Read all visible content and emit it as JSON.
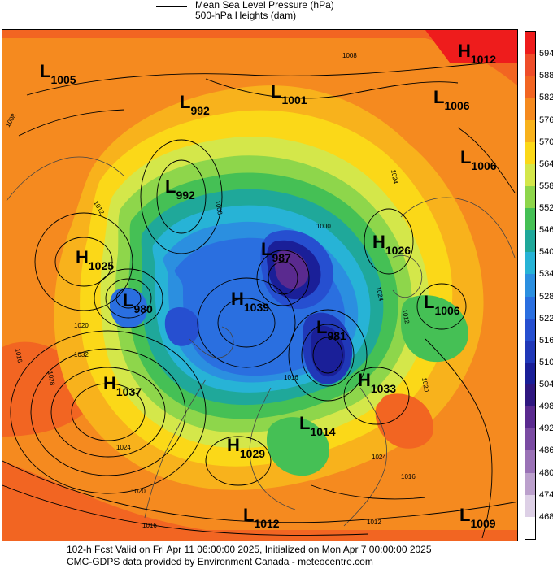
{
  "legend": {
    "line_label": "Mean Sea Level Pressure (hPa)",
    "fill_label": "500-hPa Heights (dam)"
  },
  "colorbar": {
    "ticks": [
      "594",
      "588",
      "582",
      "576",
      "570",
      "564",
      "558",
      "552",
      "546",
      "540",
      "534",
      "528",
      "522",
      "516",
      "510",
      "504",
      "498",
      "492",
      "486",
      "480",
      "474",
      "468"
    ],
    "colors": [
      "#ee1c1c",
      "#ef4d2a",
      "#f26522",
      "#f58a1f",
      "#f8b21c",
      "#fbd818",
      "#d4e74a",
      "#8ed64b",
      "#45c055",
      "#1fa89a",
      "#27b3d6",
      "#2b8fe0",
      "#2a6fe0",
      "#264fd0",
      "#2038b8",
      "#1a1f98",
      "#2f1780",
      "#5a2a8f",
      "#7a4ba2",
      "#9a72b6",
      "#bba0cc",
      "#ddd0e6",
      "#ffffff"
    ]
  },
  "pressure_systems": [
    {
      "type": "L",
      "value": "1005"
    },
    {
      "type": "L",
      "value": "992"
    },
    {
      "type": "L",
      "value": "1001"
    },
    {
      "type": "H",
      "value": "1012"
    },
    {
      "type": "L",
      "value": "1006"
    },
    {
      "type": "L",
      "value": "1006"
    },
    {
      "type": "L",
      "value": "992"
    },
    {
      "type": "L",
      "value": "987"
    },
    {
      "type": "H",
      "value": "1026"
    },
    {
      "type": "H",
      "value": "1025"
    },
    {
      "type": "L",
      "value": "980"
    },
    {
      "type": "H",
      "value": "1039"
    },
    {
      "type": "L",
      "value": "1006"
    },
    {
      "type": "L",
      "value": "981"
    },
    {
      "type": "H",
      "value": "1037"
    },
    {
      "type": "H",
      "value": "1033"
    },
    {
      "type": "L",
      "value": "1014"
    },
    {
      "type": "H",
      "value": "1029"
    },
    {
      "type": "L",
      "value": "1012"
    },
    {
      "type": "L",
      "value": "1009"
    }
  ],
  "isobar_labels": [
    "1008",
    "1008",
    "1012",
    "1016",
    "1020",
    "1032",
    "1028",
    "1024",
    "1020",
    "1016",
    "1012",
    "1016",
    "1024",
    "1012",
    "1016",
    "1020",
    "1024",
    "1000",
    "1024",
    "1008"
  ],
  "footer": {
    "line1": "102-h Fcst Valid on Fri Apr 11 06:00:00 2025, Initialized on Mon Apr  7 00:00:00 2025",
    "line2": "CMC-GDPS data provided by Environment Canada - meteocentre.com"
  }
}
